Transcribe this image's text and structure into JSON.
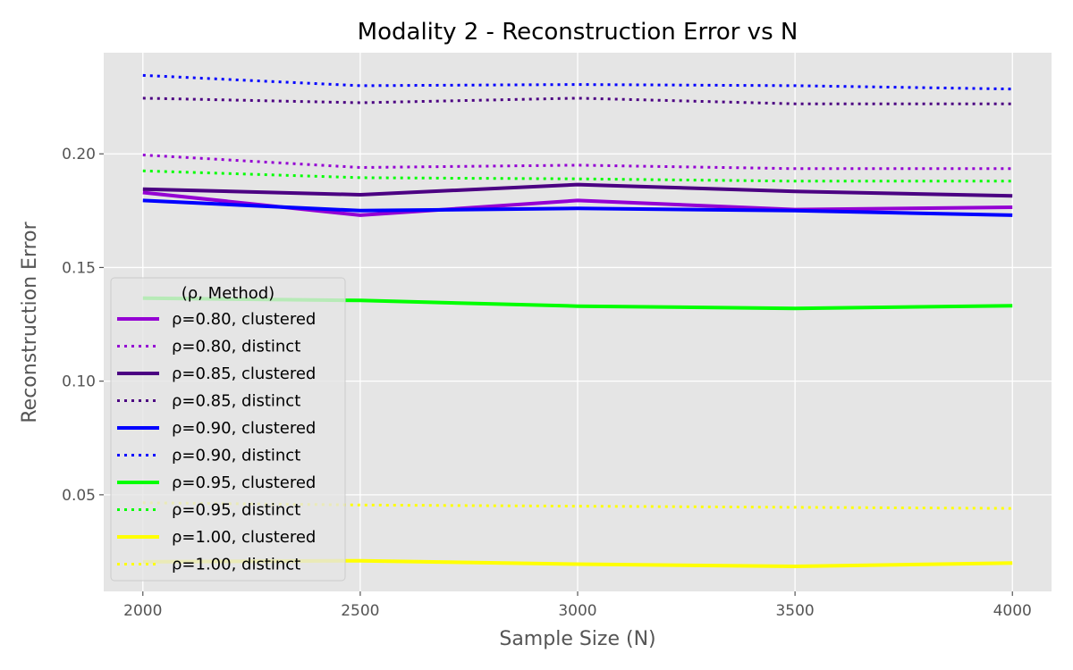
{
  "chart_data": {
    "type": "line",
    "title": "Modality 2 - Reconstruction Error vs N",
    "xlabel": "Sample Size (N)",
    "ylabel": "Reconstruction Error",
    "x": [
      2000,
      2500,
      3000,
      3500,
      4000
    ],
    "xlim": [
      1910,
      4090
    ],
    "ylim": [
      0.0075,
      0.2445
    ],
    "xticks": [
      "2000",
      "2500",
      "3000",
      "3500",
      "4000"
    ],
    "yticks": [
      "0.05",
      "0.10",
      "0.15",
      "0.20"
    ],
    "grid": true,
    "legend": {
      "title": "(ρ, Method)",
      "placement": "center-left"
    },
    "series": [
      {
        "name": "ρ=0.80, clustered",
        "color": "#9400D3",
        "style": "solid",
        "values": [
          0.183,
          0.173,
          0.1795,
          0.1755,
          0.1765
        ]
      },
      {
        "name": "ρ=0.80, distinct",
        "color": "#9400D3",
        "style": "dotted",
        "values": [
          0.1995,
          0.194,
          0.195,
          0.1935,
          0.1935
        ]
      },
      {
        "name": "ρ=0.85, clustered",
        "color": "#4B0082",
        "style": "solid",
        "values": [
          0.1845,
          0.182,
          0.1865,
          0.1835,
          0.1815
        ]
      },
      {
        "name": "ρ=0.85, distinct",
        "color": "#4B0082",
        "style": "dotted",
        "values": [
          0.2245,
          0.2225,
          0.2245,
          0.222,
          0.222
        ]
      },
      {
        "name": "ρ=0.90, clustered",
        "color": "#0000FF",
        "style": "solid",
        "values": [
          0.1795,
          0.175,
          0.176,
          0.175,
          0.173
        ]
      },
      {
        "name": "ρ=0.90, distinct",
        "color": "#0000FF",
        "style": "dotted",
        "values": [
          0.2345,
          0.23,
          0.2305,
          0.23,
          0.2285
        ]
      },
      {
        "name": "ρ=0.95, clustered",
        "color": "#00FF00",
        "style": "solid",
        "values": [
          0.1365,
          0.1355,
          0.133,
          0.132,
          0.1332
        ]
      },
      {
        "name": "ρ=0.95, distinct",
        "color": "#00FF00",
        "style": "dotted",
        "values": [
          0.1925,
          0.1895,
          0.189,
          0.188,
          0.188
        ]
      },
      {
        "name": "ρ=1.00, clustered",
        "color": "#FFFF00",
        "style": "solid",
        "values": [
          0.0205,
          0.021,
          0.0195,
          0.0185,
          0.02
        ]
      },
      {
        "name": "ρ=1.00, distinct",
        "color": "#FFFF00",
        "style": "dotted",
        "values": [
          0.0465,
          0.0455,
          0.045,
          0.0445,
          0.044
        ]
      }
    ]
  }
}
